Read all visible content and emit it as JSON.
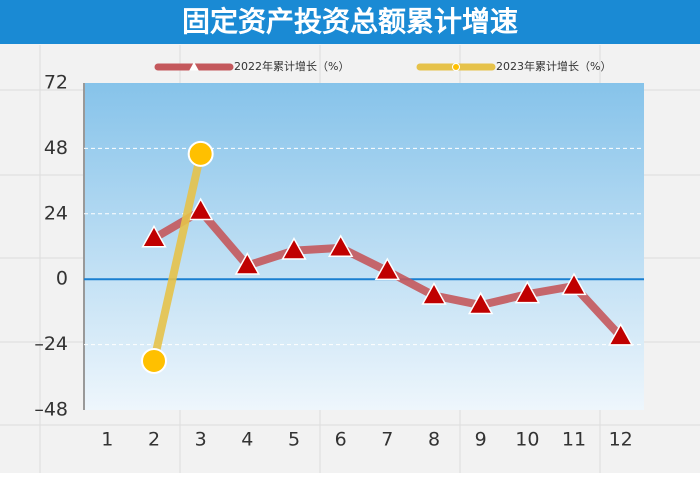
{
  "chart_data": {
    "type": "line",
    "title": "固定资产投资总额累计增速",
    "categories": [
      "1",
      "2",
      "3",
      "4",
      "5",
      "6",
      "7",
      "8",
      "9",
      "10",
      "11",
      "12"
    ],
    "series": [
      {
        "name": "2022年累计增长（%）",
        "color": "#c4585c",
        "marker_color": "#c00000",
        "values": [
          null,
          15,
          25,
          5,
          10.5,
          11.5,
          3,
          -6,
          -9.5,
          -5.5,
          -2.5,
          -21
        ]
      },
      {
        "name": "2023年累计增长（%）",
        "color": "#e6c24a",
        "marker_color": "#ffc000",
        "values": [
          null,
          -30,
          46,
          null,
          null,
          null,
          null,
          null,
          null,
          null,
          null,
          null
        ]
      }
    ],
    "ylim": [
      -48,
      72
    ],
    "yticks": [
      {
        "value": -48,
        "label": "–48"
      },
      {
        "value": -24,
        "label": "–24"
      },
      0,
      24,
      48,
      72
    ],
    "grid": true
  }
}
